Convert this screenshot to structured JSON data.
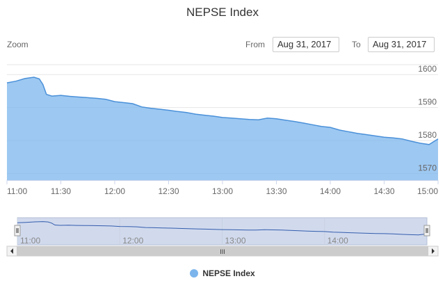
{
  "chart_data": {
    "type": "area",
    "title": "NEPSE Index",
    "zoom_label": "Zoom",
    "from_label": "From",
    "to_label": "To",
    "from_value": "Aug 31, 2017",
    "to_value": "Aug 31, 2017",
    "x_tick_labels": [
      "11:00",
      "11:30",
      "12:00",
      "12:30",
      "13:00",
      "13:30",
      "14:00",
      "14:30",
      "15:00"
    ],
    "y_tick_labels": [
      "1570",
      "1580",
      "1590",
      "1600"
    ],
    "navigator_tick_labels": [
      "11:00",
      "12:00",
      "13:00",
      "14:00"
    ],
    "navigator_scrollbar_grip": "III",
    "ylim": [
      1568,
      1603
    ],
    "xlim": [
      "11:00",
      "15:00"
    ],
    "series": [
      {
        "name": "NEPSE Index",
        "color": "#7cb5ec",
        "line_color": "#4a90d9",
        "x": [
          "11:00",
          "11:05",
          "11:10",
          "11:15",
          "11:18",
          "11:20",
          "11:22",
          "11:25",
          "11:30",
          "11:35",
          "11:40",
          "11:45",
          "11:50",
          "11:55",
          "12:00",
          "12:05",
          "12:10",
          "12:15",
          "12:20",
          "12:25",
          "12:30",
          "12:35",
          "12:40",
          "12:45",
          "12:50",
          "12:55",
          "13:00",
          "13:05",
          "13:10",
          "13:15",
          "13:20",
          "13:25",
          "13:30",
          "13:35",
          "13:40",
          "13:45",
          "13:50",
          "13:55",
          "14:00",
          "14:05",
          "14:10",
          "14:15",
          "14:20",
          "14:25",
          "14:30",
          "14:35",
          "14:40",
          "14:45",
          "14:50",
          "14:55",
          "15:00"
        ],
        "values": [
          1597.5,
          1598,
          1598.8,
          1599.2,
          1598.7,
          1597,
          1594,
          1593.5,
          1593.7,
          1593.4,
          1593.2,
          1593,
          1592.8,
          1592.5,
          1591.8,
          1591.5,
          1591.2,
          1590.2,
          1589.8,
          1589.5,
          1589.2,
          1588.8,
          1588.5,
          1588,
          1587.7,
          1587.4,
          1587,
          1586.8,
          1586.6,
          1586.4,
          1586.3,
          1586.8,
          1586.6,
          1586.2,
          1585.8,
          1585.3,
          1584.8,
          1584.3,
          1584,
          1583.2,
          1582.7,
          1582.2,
          1581.8,
          1581.4,
          1581,
          1580.8,
          1580.5,
          1579.8,
          1579.2,
          1578.8,
          1580.5
        ]
      }
    ]
  }
}
